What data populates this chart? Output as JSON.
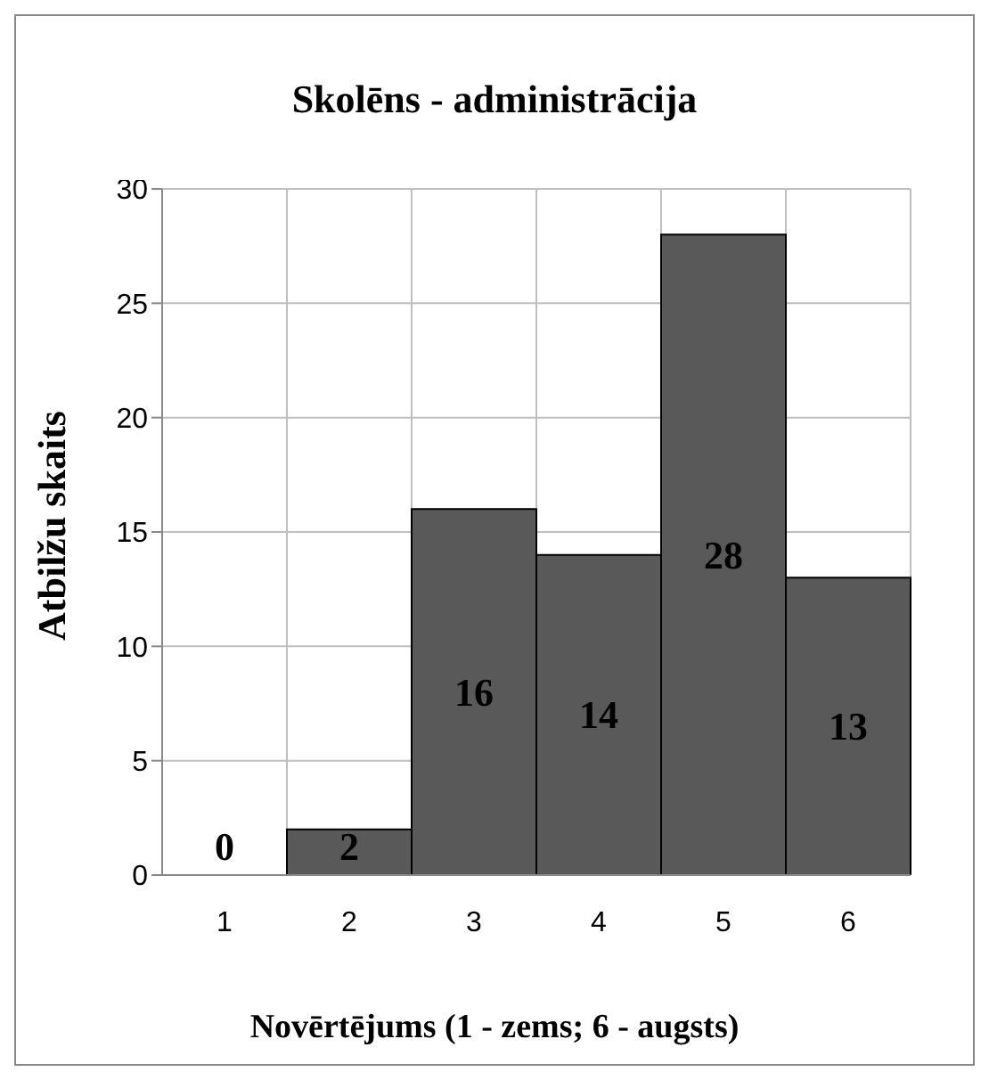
{
  "chart_data": {
    "type": "bar",
    "title": "Skolēns - administrācija",
    "xlabel": "Novērtējums (1 - zems; 6 - augsts)",
    "ylabel": "Atbilžu skaits",
    "categories": [
      "1",
      "2",
      "3",
      "4",
      "5",
      "6"
    ],
    "values": [
      0,
      2,
      16,
      14,
      28,
      13
    ],
    "color": "#595959",
    "ylim": [
      0,
      30
    ],
    "yticks": [
      0,
      5,
      10,
      15,
      20,
      25,
      30
    ],
    "grid": true,
    "data_labels": true
  }
}
